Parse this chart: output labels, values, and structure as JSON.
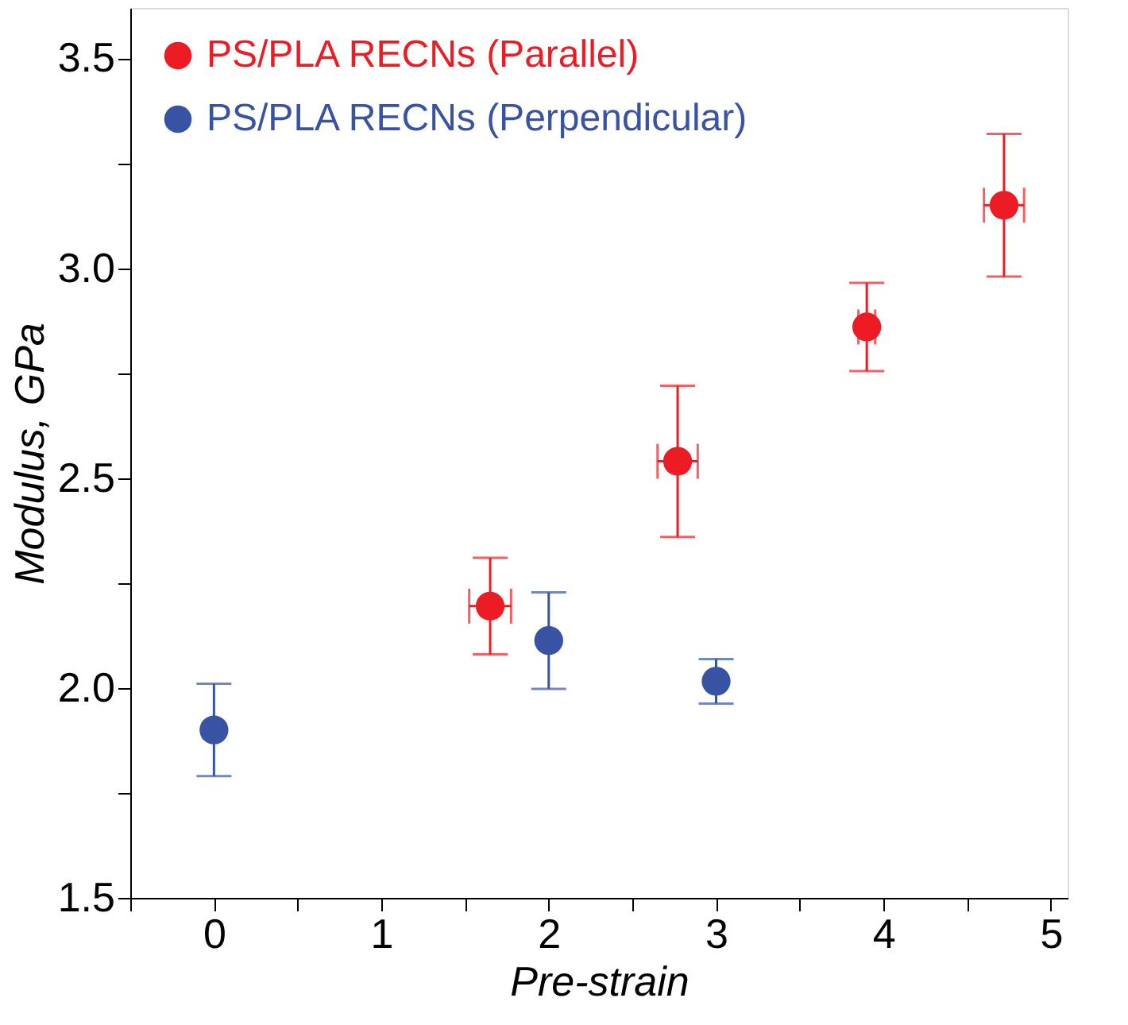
{
  "chart_data": {
    "type": "scatter",
    "xlabel": "Pre-strain",
    "ylabel": "Modulus, GPa",
    "xlim": [
      -0.5,
      5.1
    ],
    "ylim": [
      1.5,
      3.62
    ],
    "xticks": [
      {
        "value": -0.5,
        "label": null
      },
      0,
      {
        "value": 0.5,
        "label": null
      },
      1,
      {
        "value": 1.5,
        "label": null
      },
      2,
      {
        "value": 2.5,
        "label": null
      },
      3,
      {
        "value": 3.5,
        "label": null
      },
      4,
      {
        "value": 4.5,
        "label": null
      },
      5
    ],
    "yticks": [
      1.5,
      {
        "value": 1.75,
        "label": null
      },
      {
        "value": 2,
        "label": "2.0"
      },
      {
        "value": 2.25,
        "label": null
      },
      2.5,
      {
        "value": 2.75,
        "label": null
      },
      {
        "value": 3,
        "label": "3.0"
      },
      {
        "value": 3.25,
        "label": null
      },
      3.5
    ],
    "grid": false,
    "legend": "top left",
    "marker": "circle",
    "series": [
      {
        "name": "PS/PLA RECNs (Parallel)",
        "color": "#ed1c24",
        "x": [
          1.65,
          2.77,
          3.9,
          4.72
        ],
        "values": [
          2.195,
          2.54,
          2.86,
          3.15
        ],
        "errors": [
          0.115,
          0.18,
          0.105,
          0.17
        ],
        "xerrors": [
          0.125,
          0.12,
          0.05,
          0.12
        ]
      },
      {
        "name": "PS/PLA RECNs (Perpendicular)",
        "color": "#3953a4",
        "x": [
          0,
          2,
          3
        ],
        "values": [
          1.9,
          2.113,
          2.016
        ],
        "errors": [
          0.11,
          0.115,
          0.053
        ]
      }
    ]
  }
}
